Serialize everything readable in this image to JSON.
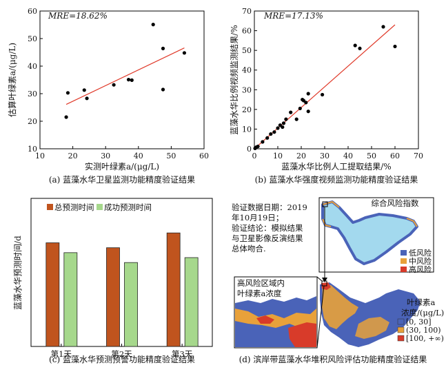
{
  "chart_data": [
    {
      "type": "scatter",
      "caption": "(a) 蓝藻水华卫星监测功能精度验证结果",
      "annotation": "MRE=18.62%",
      "xlabel": "实测叶绿素a/(μg/L)",
      "ylabel": "估算叶绿素a/(μg/L)",
      "xlim": [
        10,
        60
      ],
      "ylim": [
        10,
        60
      ],
      "xticks": [
        "10",
        "20",
        "30",
        "40",
        "50",
        "60"
      ],
      "yticks": [
        "10",
        "20",
        "30",
        "40",
        "50",
        "60"
      ],
      "points": [
        {
          "x": 18.0,
          "y": 21.5
        },
        {
          "x": 18.5,
          "y": 30.3
        },
        {
          "x": 23.5,
          "y": 31.3
        },
        {
          "x": 24.3,
          "y": 28.3
        },
        {
          "x": 32.5,
          "y": 33.2
        },
        {
          "x": 37.0,
          "y": 35.1
        },
        {
          "x": 38.0,
          "y": 34.9
        },
        {
          "x": 44.5,
          "y": 55.1
        },
        {
          "x": 47.5,
          "y": 46.4
        },
        {
          "x": 47.5,
          "y": 31.5
        },
        {
          "x": 54.0,
          "y": 44.8
        }
      ],
      "fit_line": [
        [
          18,
          26.1
        ],
        [
          54,
          46.6
        ]
      ],
      "grid": false
    },
    {
      "type": "scatter",
      "caption": "(b) 蓝藻水华强度视频监测功能精度验证结果",
      "annotation": "MRE=17.13%",
      "xlabel": "蓝藻水华比例人工提取结果/%",
      "ylabel": "蓝藻水华比例视频监测结果/%",
      "xlim": [
        0,
        70
      ],
      "ylim": [
        0,
        70
      ],
      "xticks": [
        "0",
        "10",
        "20",
        "30",
        "40",
        "50",
        "60",
        "70"
      ],
      "yticks": [
        "0",
        "10",
        "20",
        "30",
        "40",
        "50",
        "60",
        "70"
      ],
      "points": [
        {
          "x": 0.3,
          "y": 0.2
        },
        {
          "x": 0.8,
          "y": 0.8
        },
        {
          "x": 1.5,
          "y": 1.2
        },
        {
          "x": 3.5,
          "y": 3.5
        },
        {
          "x": 5.5,
          "y": 5.5
        },
        {
          "x": 7.0,
          "y": 7.5
        },
        {
          "x": 8.5,
          "y": 8.5
        },
        {
          "x": 10.0,
          "y": 10.5
        },
        {
          "x": 11.0,
          "y": 12.0
        },
        {
          "x": 12.0,
          "y": 11.0
        },
        {
          "x": 12.5,
          "y": 13.0
        },
        {
          "x": 13.5,
          "y": 15.0
        },
        {
          "x": 15.5,
          "y": 18.5
        },
        {
          "x": 18.0,
          "y": 15.0
        },
        {
          "x": 19.5,
          "y": 20.5
        },
        {
          "x": 20.5,
          "y": 25.0
        },
        {
          "x": 21.0,
          "y": 24.5
        },
        {
          "x": 22.0,
          "y": 23.5
        },
        {
          "x": 23.0,
          "y": 28.0
        },
        {
          "x": 23.0,
          "y": 19.0
        },
        {
          "x": 29.0,
          "y": 27.5
        },
        {
          "x": 43.0,
          "y": 52.5
        },
        {
          "x": 45.0,
          "y": 51.0
        },
        {
          "x": 55.0,
          "y": 62.0
        },
        {
          "x": 60.0,
          "y": 52.0
        }
      ],
      "fit_line": [
        [
          0,
          0
        ],
        [
          60,
          63
        ]
      ],
      "grid": false
    },
    {
      "type": "bar",
      "caption": "(c) 蓝藻水华预测预警功能精度验证结果",
      "ylabel": "蓝藻水华预测时间/d",
      "categories": [
        "第1天",
        "第2天",
        "第3天"
      ],
      "ylim": [
        0,
        30
      ],
      "series": [
        {
          "name": "总预测时间",
          "color": "#c0541e",
          "values": [
            21,
            20,
            23
          ]
        },
        {
          "name": "成功预测时间",
          "color": "#a6d88c",
          "values": [
            19,
            17,
            18
          ]
        }
      ],
      "legend": "top-left",
      "grid": false
    }
  ],
  "panel_d": {
    "caption": "(d) 滨岸带蓝藻水华堆积风险评估功能精度验证结果",
    "note_lines": [
      "验证数据日期：2019",
      "年10月19日；",
      "验证结论：模拟结果",
      "与卫星影像反演结果",
      "总体吻合."
    ],
    "risk_map": {
      "title": "综合风险指数",
      "legend": [
        {
          "label": "低风险",
          "color": "#4a63b8"
        },
        {
          "label": "中风险",
          "color": "#e8a13a"
        },
        {
          "label": "高风险",
          "color": "#d83b2a"
        }
      ]
    },
    "chl_map": {
      "inset_title_lines": [
        "高风险区域内",
        "叶绿素a浓度"
      ],
      "legend_title_lines": [
        "叶绿素a",
        "浓度/(μg/L)"
      ],
      "legend": [
        {
          "label": "[0, 30]",
          "color": "#4a63b8"
        },
        {
          "label": "(30, 100)",
          "color": "#e8a13a"
        },
        {
          "label": "[100, +∞)",
          "color": "#d83b2a"
        }
      ]
    }
  }
}
